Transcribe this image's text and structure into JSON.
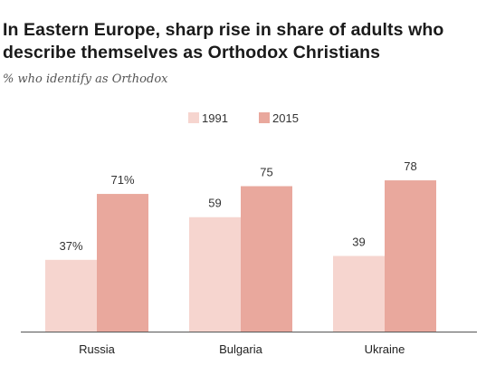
{
  "header": {
    "title": "In Eastern Europe, sharp rise in share of adults who describe themselves as Orthodox Christians",
    "subtitle": "% who identify as Orthodox"
  },
  "colors": {
    "series_1991": "#f6d5cf",
    "series_2015": "#e9a89d",
    "axis": "#555555"
  },
  "chart_data": {
    "type": "bar",
    "title": "In Eastern Europe, sharp rise in share of adults who describe themselves as Orthodox Christians",
    "subtitle": "% who identify as Orthodox",
    "categories": [
      "Russia",
      "Bulgaria",
      "Ukraine"
    ],
    "series": [
      {
        "name": "1991",
        "values": [
          37,
          59,
          39
        ],
        "labels": [
          "37%",
          "59",
          "39"
        ]
      },
      {
        "name": "2015",
        "values": [
          71,
          75,
          78
        ],
        "labels": [
          "71%",
          "75",
          "78"
        ]
      }
    ],
    "ylim": [
      0,
      100
    ],
    "xlabel": "",
    "ylabel": "",
    "legend": "top-center",
    "grid": false
  }
}
